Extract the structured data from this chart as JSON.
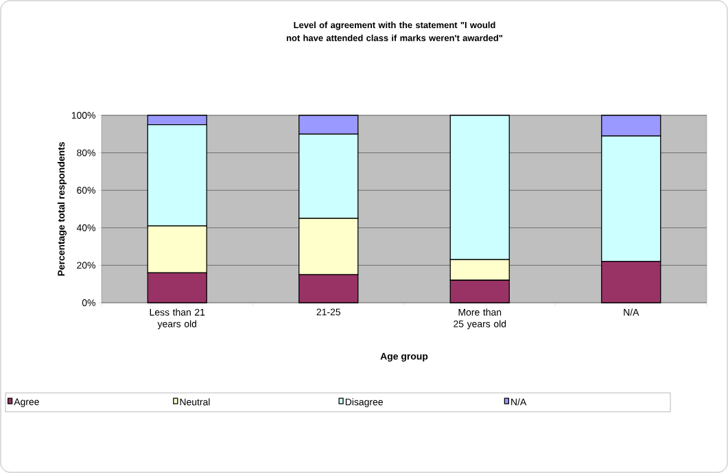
{
  "chart_data": {
    "type": "bar",
    "stacked": true,
    "title": "Level of agreement with the statement \"I would not have attended class if marks weren't awarded\"",
    "xlabel": "Age group",
    "ylabel": "Percentage total respondents",
    "categories": [
      "Less than 21 years old",
      "21-25",
      "More than 25 years old",
      "N/A"
    ],
    "series": [
      {
        "name": "Agree",
        "color": "#993366",
        "values": [
          16,
          15,
          12,
          22
        ]
      },
      {
        "name": "Neutral",
        "color": "#ffffcc",
        "values": [
          25,
          30,
          11,
          0
        ]
      },
      {
        "name": "Disagree",
        "color": "#ccffff",
        "values": [
          54,
          45,
          77,
          67
        ]
      },
      {
        "name": "N/A",
        "color": "#9999ff",
        "values": [
          5,
          10,
          0,
          11
        ]
      }
    ],
    "ylim": [
      0,
      100
    ],
    "yticks": [
      {
        "value": 0,
        "label": "0%"
      },
      {
        "value": 20,
        "label": "20%"
      },
      {
        "value": 40,
        "label": "40%"
      },
      {
        "value": 60,
        "label": "60%"
      },
      {
        "value": 80,
        "label": "80%"
      },
      {
        "value": 100,
        "label": "100%"
      }
    ],
    "grid": "y",
    "legend": "bottom"
  }
}
